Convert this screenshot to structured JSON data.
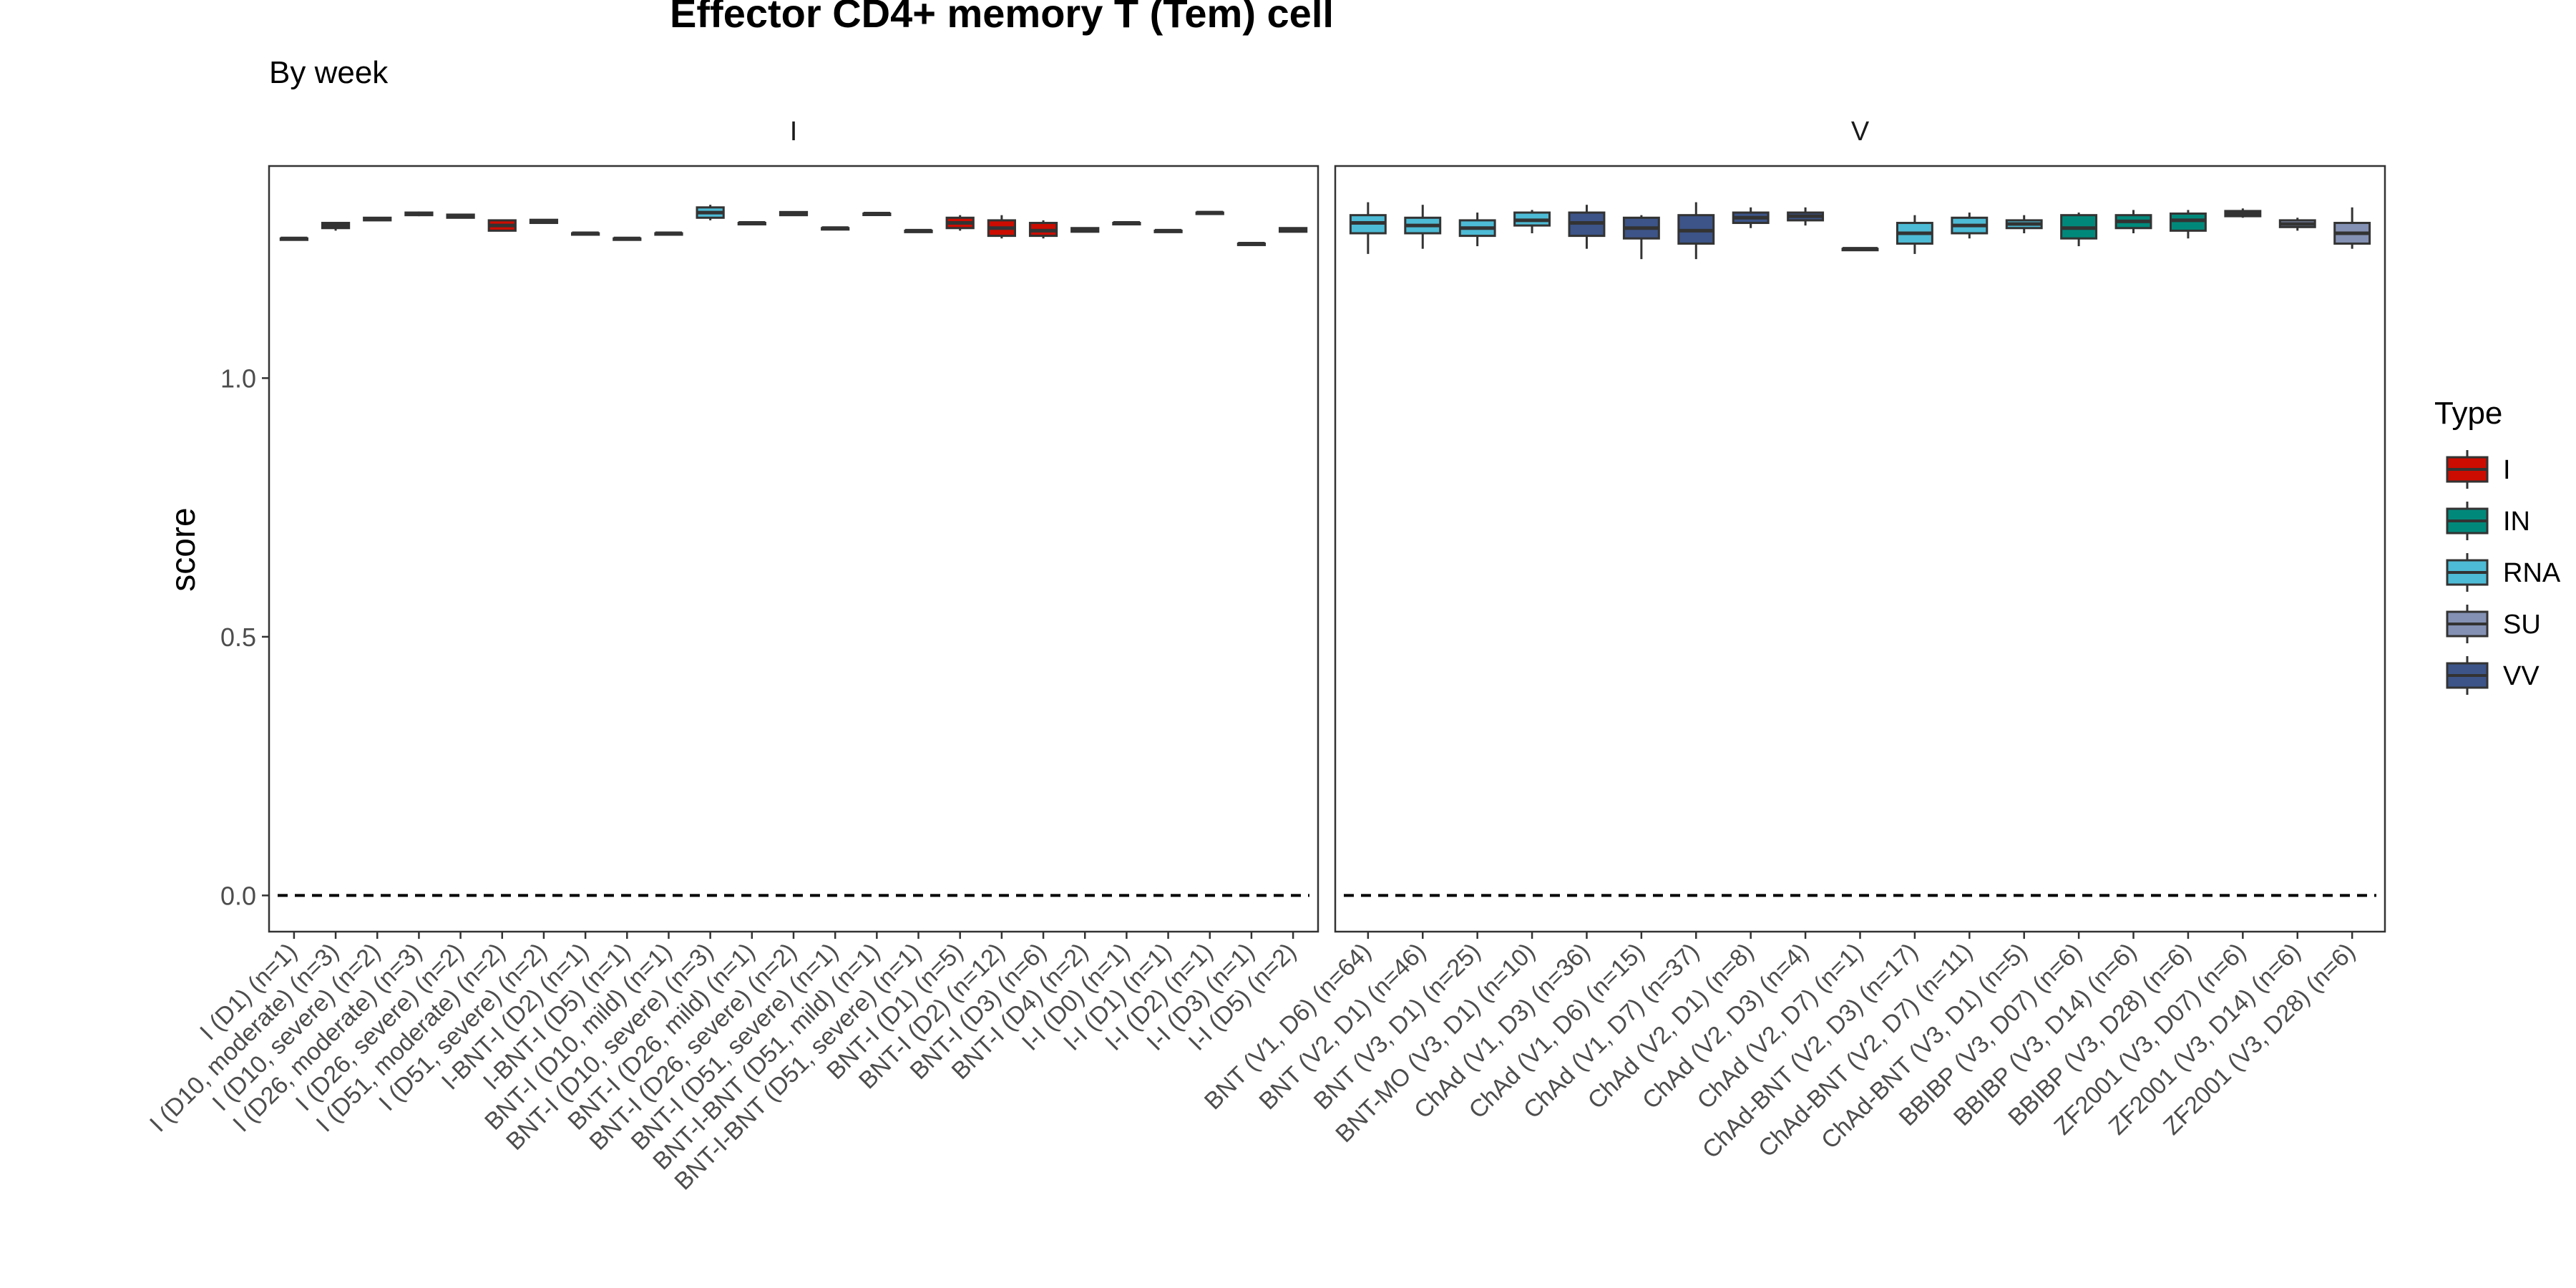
{
  "chart_data": {
    "type": "boxplot",
    "title": "Effector CD4+ memory T (Tem) cell",
    "subtitle": "By week",
    "ylabel": "score",
    "ylim": [
      -0.07,
      1.41
    ],
    "yticks": [
      0.0,
      0.5,
      1.0
    ],
    "ytick_labels": [
      "0.0",
      "0.5",
      "1.0"
    ],
    "reference_line_y": 0,
    "grid": false,
    "legend": {
      "title": "Type",
      "position": "right",
      "entries": [
        {
          "label": "I",
          "color": "#CC0C00"
        },
        {
          "label": "IN",
          "color": "#00897B"
        },
        {
          "label": "RNA",
          "color": "#4DBBD5"
        },
        {
          "label": "SU",
          "color": "#8491B4"
        },
        {
          "label": "VV",
          "color": "#3C5488"
        }
      ]
    },
    "panels": [
      {
        "strip": "I",
        "groups": [
          {
            "label": "I (D1) (n=1)",
            "type": "I",
            "q1": 1.27,
            "median": 1.27,
            "q3": 1.27,
            "lo": 1.27,
            "hi": 1.27
          },
          {
            "label": "I (D10, moderate) (n=3)",
            "type": "I",
            "q1": 1.29,
            "median": 1.295,
            "q3": 1.3,
            "lo": 1.285,
            "hi": 1.3
          },
          {
            "label": "I (D10, severe) (n=2)",
            "type": "I",
            "q1": 1.305,
            "median": 1.308,
            "q3": 1.31,
            "lo": 1.305,
            "hi": 1.31
          },
          {
            "label": "I (D26, moderate) (n=3)",
            "type": "I",
            "q1": 1.315,
            "median": 1.318,
            "q3": 1.32,
            "lo": 1.313,
            "hi": 1.322
          },
          {
            "label": "I (D26, severe) (n=2)",
            "type": "I",
            "q1": 1.31,
            "median": 1.313,
            "q3": 1.316,
            "lo": 1.31,
            "hi": 1.316
          },
          {
            "label": "I (D51, moderate) (n=2)",
            "type": "I",
            "q1": 1.285,
            "median": 1.295,
            "q3": 1.305,
            "lo": 1.285,
            "hi": 1.305
          },
          {
            "label": "I (D51, severe) (n=2)",
            "type": "I",
            "q1": 1.3,
            "median": 1.303,
            "q3": 1.306,
            "lo": 1.3,
            "hi": 1.306
          },
          {
            "label": "I-BNT-I (D2) (n=1)",
            "type": "I",
            "q1": 1.28,
            "median": 1.28,
            "q3": 1.28,
            "lo": 1.28,
            "hi": 1.28
          },
          {
            "label": "I-BNT-I (D5) (n=1)",
            "type": "I",
            "q1": 1.27,
            "median": 1.27,
            "q3": 1.27,
            "lo": 1.27,
            "hi": 1.27
          },
          {
            "label": "BNT-I (D10, mild) (n=1)",
            "type": "I",
            "q1": 1.28,
            "median": 1.28,
            "q3": 1.28,
            "lo": 1.28,
            "hi": 1.28
          },
          {
            "label": "BNT-I (D10, severe) (n=3)",
            "type": "RNA",
            "q1": 1.31,
            "median": 1.32,
            "q3": 1.33,
            "lo": 1.305,
            "hi": 1.335
          },
          {
            "label": "BNT-I (D26, mild) (n=1)",
            "type": "I",
            "q1": 1.3,
            "median": 1.3,
            "q3": 1.3,
            "lo": 1.3,
            "hi": 1.3
          },
          {
            "label": "BNT-I (D26, severe) (n=2)",
            "type": "I",
            "q1": 1.315,
            "median": 1.318,
            "q3": 1.321,
            "lo": 1.315,
            "hi": 1.321
          },
          {
            "label": "BNT-I (D51, severe) (n=1)",
            "type": "I",
            "q1": 1.29,
            "median": 1.29,
            "q3": 1.29,
            "lo": 1.29,
            "hi": 1.29
          },
          {
            "label": "BNT-I-BNT (D51, mild) (n=1)",
            "type": "I",
            "q1": 1.318,
            "median": 1.318,
            "q3": 1.318,
            "lo": 1.318,
            "hi": 1.318
          },
          {
            "label": "BNT-I-BNT (D51, severe) (n=1)",
            "type": "I",
            "q1": 1.285,
            "median": 1.285,
            "q3": 1.285,
            "lo": 1.285,
            "hi": 1.285
          },
          {
            "label": "BNT-I (D1) (n=5)",
            "type": "I",
            "q1": 1.29,
            "median": 1.3,
            "q3": 1.31,
            "lo": 1.285,
            "hi": 1.315
          },
          {
            "label": "BNT-I (D2) (n=12)",
            "type": "I",
            "q1": 1.275,
            "median": 1.29,
            "q3": 1.305,
            "lo": 1.27,
            "hi": 1.315
          },
          {
            "label": "BNT-I (D3) (n=6)",
            "type": "I",
            "q1": 1.275,
            "median": 1.285,
            "q3": 1.3,
            "lo": 1.27,
            "hi": 1.305
          },
          {
            "label": "BNT-I (D4) (n=2)",
            "type": "I",
            "q1": 1.283,
            "median": 1.286,
            "q3": 1.29,
            "lo": 1.283,
            "hi": 1.29
          },
          {
            "label": "I-I (D0) (n=1)",
            "type": "I",
            "q1": 1.3,
            "median": 1.3,
            "q3": 1.3,
            "lo": 1.3,
            "hi": 1.3
          },
          {
            "label": "I-I (D1) (n=1)",
            "type": "I",
            "q1": 1.285,
            "median": 1.285,
            "q3": 1.285,
            "lo": 1.285,
            "hi": 1.285
          },
          {
            "label": "I-I (D2) (n=1)",
            "type": "I",
            "q1": 1.32,
            "median": 1.32,
            "q3": 1.32,
            "lo": 1.32,
            "hi": 1.32
          },
          {
            "label": "I-I (D3) (n=1)",
            "type": "I",
            "q1": 1.26,
            "median": 1.26,
            "q3": 1.26,
            "lo": 1.26,
            "hi": 1.26
          },
          {
            "label": "I-I (D5) (n=2)",
            "type": "I",
            "q1": 1.283,
            "median": 1.287,
            "q3": 1.29,
            "lo": 1.283,
            "hi": 1.29
          }
        ]
      },
      {
        "strip": "V",
        "groups": [
          {
            "label": "BNT (V1, D6) (n=64)",
            "type": "RNA",
            "q1": 1.28,
            "median": 1.3,
            "q3": 1.315,
            "lo": 1.24,
            "hi": 1.34
          },
          {
            "label": "BNT (V2, D1) (n=46)",
            "type": "RNA",
            "q1": 1.28,
            "median": 1.295,
            "q3": 1.31,
            "lo": 1.25,
            "hi": 1.335
          },
          {
            "label": "BNT (V3, D1) (n=25)",
            "type": "RNA",
            "q1": 1.275,
            "median": 1.29,
            "q3": 1.305,
            "lo": 1.255,
            "hi": 1.32
          },
          {
            "label": "BNT-MO (V3, D1) (n=10)",
            "type": "RNA",
            "q1": 1.295,
            "median": 1.305,
            "q3": 1.32,
            "lo": 1.28,
            "hi": 1.325
          },
          {
            "label": "ChAd (V1, D3) (n=36)",
            "type": "VV",
            "q1": 1.275,
            "median": 1.3,
            "q3": 1.32,
            "lo": 1.25,
            "hi": 1.335
          },
          {
            "label": "ChAd (V1, D6) (n=15)",
            "type": "VV",
            "q1": 1.27,
            "median": 1.29,
            "q3": 1.31,
            "lo": 1.23,
            "hi": 1.315
          },
          {
            "label": "ChAd (V1, D7) (n=37)",
            "type": "VV",
            "q1": 1.26,
            "median": 1.285,
            "q3": 1.315,
            "lo": 1.23,
            "hi": 1.34
          },
          {
            "label": "ChAd (V2, D1) (n=8)",
            "type": "VV",
            "q1": 1.3,
            "median": 1.31,
            "q3": 1.32,
            "lo": 1.29,
            "hi": 1.33
          },
          {
            "label": "ChAd (V2, D3) (n=4)",
            "type": "VV",
            "q1": 1.305,
            "median": 1.313,
            "q3": 1.32,
            "lo": 1.295,
            "hi": 1.33
          },
          {
            "label": "ChAd (V2, D7) (n=1)",
            "type": "VV",
            "q1": 1.25,
            "median": 1.25,
            "q3": 1.25,
            "lo": 1.25,
            "hi": 1.25
          },
          {
            "label": "ChAd-BNT (V2, D3) (n=17)",
            "type": "RNA",
            "q1": 1.26,
            "median": 1.28,
            "q3": 1.3,
            "lo": 1.24,
            "hi": 1.315
          },
          {
            "label": "ChAd-BNT (V2, D7) (n=11)",
            "type": "RNA",
            "q1": 1.28,
            "median": 1.295,
            "q3": 1.31,
            "lo": 1.27,
            "hi": 1.32
          },
          {
            "label": "ChAd-BNT (V3, D1) (n=5)",
            "type": "RNA",
            "q1": 1.29,
            "median": 1.298,
            "q3": 1.305,
            "lo": 1.28,
            "hi": 1.315
          },
          {
            "label": "BBIBP (V3, D07) (n=6)",
            "type": "IN",
            "q1": 1.27,
            "median": 1.29,
            "q3": 1.315,
            "lo": 1.255,
            "hi": 1.32
          },
          {
            "label": "BBIBP (V3, D14) (n=6)",
            "type": "IN",
            "q1": 1.29,
            "median": 1.303,
            "q3": 1.315,
            "lo": 1.28,
            "hi": 1.325
          },
          {
            "label": "BBIBP (V3, D28) (n=6)",
            "type": "IN",
            "q1": 1.285,
            "median": 1.305,
            "q3": 1.318,
            "lo": 1.27,
            "hi": 1.325
          },
          {
            "label": "ZF2001 (V3, D07) (n=6)",
            "type": "SU",
            "q1": 1.313,
            "median": 1.318,
            "q3": 1.323,
            "lo": 1.31,
            "hi": 1.328
          },
          {
            "label": "ZF2001 (V3, D14) (n=6)",
            "type": "SU",
            "q1": 1.292,
            "median": 1.298,
            "q3": 1.305,
            "lo": 1.285,
            "hi": 1.31
          },
          {
            "label": "ZF2001 (V3, D28) (n=6)",
            "type": "SU",
            "q1": 1.26,
            "median": 1.28,
            "q3": 1.3,
            "lo": 1.25,
            "hi": 1.33
          }
        ]
      }
    ]
  }
}
